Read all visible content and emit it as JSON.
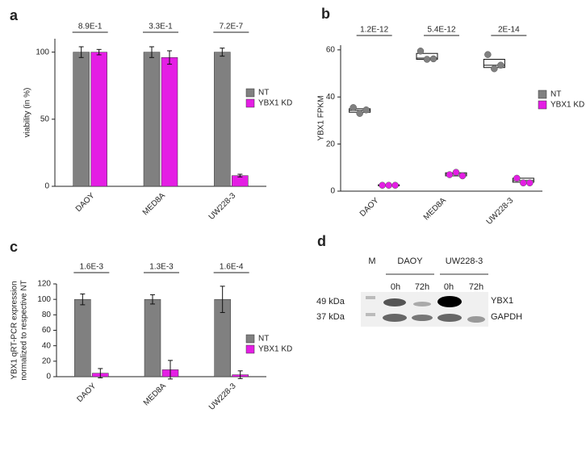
{
  "chart_data": [
    {
      "panel": "a",
      "type": "bar",
      "y_label": [
        "viability (in %)"
      ],
      "categories": [
        "DAOY",
        "MED8A",
        "UW228-3"
      ],
      "series": [
        {
          "name": "NT",
          "color": "#808080",
          "values": [
            100,
            100,
            100
          ],
          "errors": [
            4,
            4,
            3
          ]
        },
        {
          "name": "YBX1 KD",
          "color": "#e41ee4",
          "values": [
            100,
            96,
            8
          ],
          "errors": [
            2,
            5,
            1
          ]
        }
      ],
      "annotations": [
        "8.9E-1",
        "3.3E-1",
        "7.2E-7"
      ],
      "ylim": [
        0,
        110
      ],
      "yticks": [
        0,
        50,
        100
      ],
      "legend": "right"
    },
    {
      "panel": "b",
      "type": "box",
      "y_label": [
        "YBX1 FPKM"
      ],
      "categories": [
        "DAOY",
        "MED8A",
        "UW228-3"
      ],
      "series": [
        {
          "name": "NT",
          "color": "#808080",
          "values": [
            [
              35.5,
              33,
              34.5
            ],
            [
              59.5,
              56,
              56.2
            ],
            [
              58,
              52,
              53.5
            ]
          ],
          "q1": [
            33.5,
            56,
            52.5
          ],
          "median": [
            34.3,
            56.5,
            53.5
          ],
          "q3": [
            35,
            58.5,
            56
          ]
        },
        {
          "name": "YBX1 KD",
          "color": "#e41ee4",
          "values": [
            [
              2.5,
              2.5,
              2.5
            ],
            [
              7,
              8,
              6.5
            ],
            [
              5.5,
              3.5,
              3.5
            ]
          ],
          "q1": [
            2.3,
            6.5,
            3.8
          ],
          "median": [
            2.5,
            7.2,
            4.5
          ],
          "q3": [
            2.7,
            7.8,
            5.5
          ]
        }
      ],
      "annotations": [
        "1.2E-12",
        "5.4E-12",
        "2E-14"
      ],
      "ylim": [
        0,
        62
      ],
      "yticks": [
        0,
        20,
        40,
        60
      ],
      "legend": "right"
    },
    {
      "panel": "c",
      "type": "bar",
      "y_label": [
        "YBX1 qRT-PCR expression",
        "normalized to respective NT"
      ],
      "categories": [
        "DAOY",
        "MED8A",
        "UW228-3"
      ],
      "series": [
        {
          "name": "NT",
          "color": "#808080",
          "values": [
            100,
            100,
            100
          ],
          "errors": [
            7,
            6,
            17
          ]
        },
        {
          "name": "YBX1 KD",
          "color": "#e41ee4",
          "values": [
            4.5,
            9,
            2.5
          ],
          "errors": [
            6,
            12,
            5
          ]
        }
      ],
      "annotations": [
        "1.6E-3",
        "1.3E-3",
        "1.6E-4"
      ],
      "ylim": [
        0,
        120
      ],
      "yticks": [
        0,
        20,
        40,
        60,
        80,
        100,
        120
      ],
      "legend": "right"
    }
  ],
  "blot": {
    "panel": "d",
    "marker": "M",
    "groups": [
      "DAOY",
      "UW228-3"
    ],
    "timepoints": [
      "0h",
      "72h",
      "0h",
      "72h"
    ],
    "sizes": [
      "49 kDa",
      "37 kDa"
    ],
    "proteins": [
      "YBX1",
      "GAPDH"
    ]
  }
}
